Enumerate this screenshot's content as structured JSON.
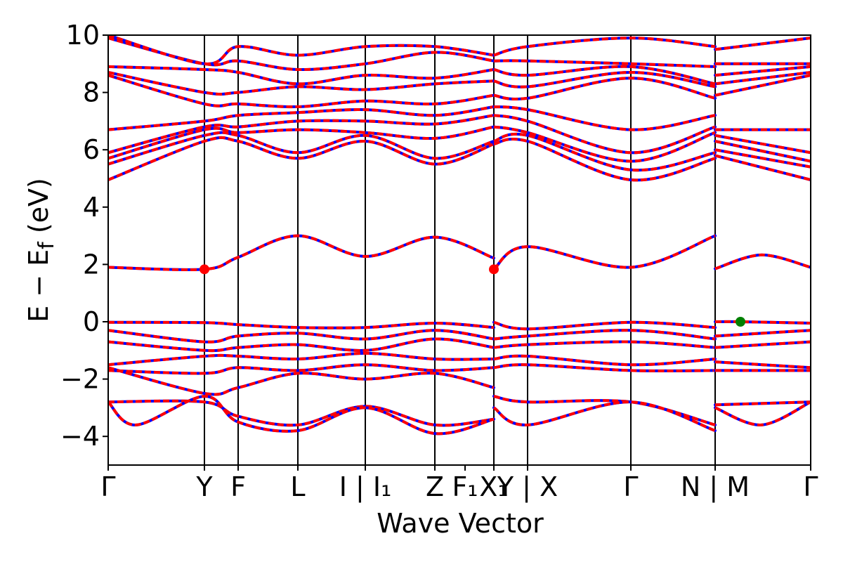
{
  "chart_data": {
    "type": "line",
    "xlabel": "Wave Vector",
    "ylabel": "E − E_f (eV)",
    "ylabel_main": "E − E",
    "ylabel_sub": "f",
    "ylabel_unit": " (eV)",
    "ylim": [
      -5,
      10
    ],
    "yticks": [
      -4,
      -2,
      0,
      2,
      4,
      6,
      8,
      10
    ],
    "ytick_labels": [
      "−4",
      "−2",
      "0",
      "2",
      "4",
      "6",
      "8",
      "10"
    ],
    "xlim": [
      0,
      1
    ],
    "kpoints": [
      {
        "label": "Γ",
        "x": 0.0
      },
      {
        "label": "Y",
        "x": 0.137
      },
      {
        "label": "F",
        "x": 0.185
      },
      {
        "label": "L",
        "x": 0.27
      },
      {
        "label": "I | I₁",
        "x": 0.366
      },
      {
        "label": "Z",
        "x": 0.465
      },
      {
        "label": "F₁",
        "x": 0.508
      },
      {
        "label": "X₁",
        "x": 0.549
      },
      {
        "label": "Y | X",
        "x": 0.597
      },
      {
        "label": "Γ",
        "x": 0.744
      },
      {
        "label": "N | M",
        "x": 0.864
      },
      {
        "label": "Γ",
        "x": 1.0
      }
    ],
    "vlines_x": [
      0.137,
      0.185,
      0.27,
      0.366,
      0.465,
      0.549,
      0.597,
      0.744,
      0.864
    ],
    "series_style": {
      "spin_up_color": "#0000ff",
      "spin_down_color": "#ff0000",
      "dashed": true
    },
    "bands": [
      {
        "x": [
          0.0,
          0.137,
          0.185,
          0.27,
          0.366,
          0.465,
          0.549
        ],
        "y": [
          1.9,
          1.83,
          2.25,
          3.0,
          2.28,
          2.95,
          2.22
        ]
      },
      {
        "x": [
          0.549,
          0.597,
          0.744,
          0.864
        ],
        "y": [
          1.83,
          2.62,
          1.9,
          3.0
        ]
      },
      {
        "x": [
          0.864,
          0.93,
          1.0
        ],
        "y": [
          1.85,
          2.33,
          1.9
        ]
      },
      {
        "x": [
          0.0,
          0.137,
          0.185,
          0.27,
          0.366,
          0.465,
          0.549
        ],
        "y": [
          -0.02,
          -0.03,
          -0.1,
          -0.2,
          -0.2,
          -0.05,
          -0.2
        ]
      },
      {
        "x": [
          0.549,
          0.597,
          0.744,
          0.864
        ],
        "y": [
          -0.02,
          -0.25,
          -0.02,
          -0.2
        ]
      },
      {
        "x": [
          0.864,
          0.9,
          1.0
        ],
        "y": [
          0.0,
          0.0,
          -0.05
        ]
      },
      {
        "x": [
          0.0,
          0.137,
          0.185,
          0.27,
          0.366,
          0.465,
          0.549
        ],
        "y": [
          -0.3,
          -0.7,
          -0.5,
          -0.4,
          -0.6,
          -0.3,
          -0.6
        ]
      },
      {
        "x": [
          0.549,
          0.597,
          0.744,
          0.864
        ],
        "y": [
          -0.6,
          -0.5,
          -0.3,
          -0.6
        ]
      },
      {
        "x": [
          0.864,
          1.0
        ],
        "y": [
          -0.5,
          -0.3
        ]
      },
      {
        "x": [
          0.0,
          0.137,
          0.185,
          0.27,
          0.366,
          0.465,
          0.549
        ],
        "y": [
          -0.7,
          -1.0,
          -0.9,
          -0.8,
          -1.0,
          -0.6,
          -0.9
        ]
      },
      {
        "x": [
          0.549,
          0.597,
          0.744,
          0.864
        ],
        "y": [
          -0.9,
          -0.8,
          -0.7,
          -0.9
        ]
      },
      {
        "x": [
          0.864,
          1.0
        ],
        "y": [
          -0.9,
          -0.7
        ]
      },
      {
        "x": [
          0.0,
          0.137,
          0.185,
          0.27,
          0.366,
          0.465,
          0.549
        ],
        "y": [
          -1.5,
          -1.2,
          -1.2,
          -1.3,
          -1.1,
          -1.3,
          -1.3
        ]
      },
      {
        "x": [
          0.549,
          0.597,
          0.744,
          0.864
        ],
        "y": [
          -1.3,
          -1.2,
          -1.5,
          -1.3
        ]
      },
      {
        "x": [
          0.864,
          1.0
        ],
        "y": [
          -1.4,
          -1.6
        ]
      },
      {
        "x": [
          0.0,
          0.137,
          0.185,
          0.27,
          0.366,
          0.465,
          0.549
        ],
        "y": [
          -1.7,
          -1.8,
          -1.6,
          -1.7,
          -1.5,
          -1.7,
          -1.6
        ]
      },
      {
        "x": [
          0.549,
          0.597,
          0.744,
          0.864
        ],
        "y": [
          -1.6,
          -1.5,
          -1.7,
          -1.7
        ]
      },
      {
        "x": [
          0.864,
          1.0
        ],
        "y": [
          -1.7,
          -1.7
        ]
      },
      {
        "x": [
          0.0,
          0.137,
          0.185,
          0.27,
          0.366,
          0.465,
          0.549
        ],
        "y": [
          -1.6,
          -2.5,
          -2.3,
          -1.8,
          -2.0,
          -1.8,
          -2.3
        ]
      },
      {
        "x": [
          0.0,
          0.137,
          0.185,
          0.27,
          0.366,
          0.465,
          0.549
        ],
        "y": [
          -2.8,
          -2.8,
          -3.3,
          -3.6,
          -2.95,
          -3.6,
          -3.4
        ]
      },
      {
        "x": [
          0.549,
          0.597,
          0.744,
          0.864
        ],
        "y": [
          -2.6,
          -2.8,
          -2.8,
          -3.6
        ]
      },
      {
        "x": [
          0.864,
          1.0
        ],
        "y": [
          -2.9,
          -2.8
        ]
      },
      {
        "x": [
          0.0,
          0.04,
          0.137,
          0.185,
          0.27,
          0.366,
          0.465,
          0.549
        ],
        "y": [
          -2.8,
          -3.6,
          -2.6,
          -3.5,
          -3.8,
          -3.0,
          -3.9,
          -3.4
        ]
      },
      {
        "x": [
          0.549,
          0.597,
          0.744,
          0.864
        ],
        "y": [
          -3.0,
          -3.6,
          -2.8,
          -3.8
        ]
      },
      {
        "x": [
          0.864,
          0.93,
          1.0
        ],
        "y": [
          -3.0,
          -3.6,
          -2.8
        ]
      },
      {
        "x": [
          0.0,
          0.137,
          0.185,
          0.27,
          0.366,
          0.465,
          0.549
        ],
        "y": [
          4.95,
          6.3,
          6.3,
          5.7,
          6.3,
          5.5,
          6.2
        ]
      },
      {
        "x": [
          0.549,
          0.597,
          0.744,
          0.864
        ],
        "y": [
          6.2,
          6.3,
          4.95,
          5.7
        ]
      },
      {
        "x": [
          0.864,
          1.0
        ],
        "y": [
          5.8,
          4.95
        ]
      },
      {
        "x": [
          0.0,
          0.137,
          0.185,
          0.27,
          0.366,
          0.465,
          0.549
        ],
        "y": [
          5.5,
          6.5,
          6.5,
          5.9,
          6.5,
          5.7,
          6.3
        ]
      },
      {
        "x": [
          0.549,
          0.597,
          0.744,
          0.864
        ],
        "y": [
          6.3,
          6.5,
          5.3,
          5.9
        ]
      },
      {
        "x": [
          0.864,
          1.0
        ],
        "y": [
          6.0,
          5.4
        ]
      },
      {
        "x": [
          0.0,
          0.137,
          0.185,
          0.27,
          0.366,
          0.465,
          0.549
        ],
        "y": [
          5.7,
          6.7,
          6.6,
          6.7,
          6.6,
          6.4,
          6.8
        ]
      },
      {
        "x": [
          0.549,
          0.597,
          0.744,
          0.864
        ],
        "y": [
          6.8,
          6.6,
          5.6,
          6.6
        ]
      },
      {
        "x": [
          0.864,
          1.0
        ],
        "y": [
          6.3,
          5.6
        ]
      },
      {
        "x": [
          0.0,
          0.137,
          0.185,
          0.27,
          0.366,
          0.465,
          0.549
        ],
        "y": [
          5.9,
          6.8,
          6.8,
          7.0,
          7.0,
          6.9,
          7.2
        ]
      },
      {
        "x": [
          0.549,
          0.597,
          0.744,
          0.864
        ],
        "y": [
          7.2,
          7.0,
          5.9,
          6.8
        ]
      },
      {
        "x": [
          0.864,
          1.0
        ],
        "y": [
          6.5,
          5.9
        ]
      },
      {
        "x": [
          0.0,
          0.137,
          0.185,
          0.27,
          0.366,
          0.465,
          0.549
        ],
        "y": [
          6.7,
          7.0,
          7.2,
          7.3,
          7.4,
          7.2,
          7.5
        ]
      },
      {
        "x": [
          0.549,
          0.597,
          0.744,
          0.864
        ],
        "y": [
          7.5,
          7.4,
          6.7,
          7.2
        ]
      },
      {
        "x": [
          0.864,
          1.0
        ],
        "y": [
          6.7,
          6.7
        ]
      },
      {
        "x": [
          0.0,
          0.137,
          0.185,
          0.27,
          0.366,
          0.465,
          0.549
        ],
        "y": [
          8.6,
          7.6,
          7.6,
          7.5,
          7.7,
          7.6,
          7.9
        ]
      },
      {
        "x": [
          0.549,
          0.597,
          0.744,
          0.864
        ],
        "y": [
          7.9,
          7.8,
          8.5,
          7.8
        ]
      },
      {
        "x": [
          0.864,
          1.0
        ],
        "y": [
          7.9,
          8.6
        ]
      },
      {
        "x": [
          0.0,
          0.137,
          0.185,
          0.27,
          0.366,
          0.465,
          0.549
        ],
        "y": [
          8.7,
          8.0,
          8.0,
          8.2,
          8.1,
          8.3,
          8.4
        ]
      },
      {
        "x": [
          0.549,
          0.597,
          0.744,
          0.864
        ],
        "y": [
          8.4,
          8.2,
          8.7,
          8.2
        ]
      },
      {
        "x": [
          0.864,
          1.0
        ],
        "y": [
          8.3,
          8.7
        ]
      },
      {
        "x": [
          0.0,
          0.137,
          0.185,
          0.27,
          0.366,
          0.465,
          0.549
        ],
        "y": [
          8.9,
          8.8,
          8.7,
          8.3,
          8.6,
          8.5,
          8.8
        ]
      },
      {
        "x": [
          0.549,
          0.597,
          0.744,
          0.864
        ],
        "y": [
          8.8,
          8.6,
          8.9,
          8.3
        ]
      },
      {
        "x": [
          0.864,
          1.0
        ],
        "y": [
          8.6,
          8.9
        ]
      },
      {
        "x": [
          0.0,
          0.137,
          0.185,
          0.27,
          0.366,
          0.465,
          0.549
        ],
        "y": [
          9.9,
          9.0,
          9.1,
          8.8,
          9.0,
          9.4,
          9.1
        ]
      },
      {
        "x": [
          0.549,
          0.597,
          0.744,
          0.864
        ],
        "y": [
          9.1,
          9.1,
          9.0,
          8.9
        ]
      },
      {
        "x": [
          0.864,
          1.0
        ],
        "y": [
          9.0,
          9.0
        ]
      },
      {
        "x": [
          0.0,
          0.137,
          0.185,
          0.27,
          0.366,
          0.465,
          0.549
        ],
        "y": [
          10.0,
          9.0,
          9.6,
          9.3,
          9.6,
          9.6,
          9.3
        ]
      },
      {
        "x": [
          0.549,
          0.597,
          0.744,
          0.864
        ],
        "y": [
          9.3,
          9.6,
          9.9,
          9.6
        ]
      },
      {
        "x": [
          0.864,
          1.0
        ],
        "y": [
          9.5,
          9.9
        ]
      }
    ],
    "markers": [
      {
        "x": 0.137,
        "y": 1.83,
        "color": "#ff0000"
      },
      {
        "x": 0.549,
        "y": 1.83,
        "color": "#ff0000"
      },
      {
        "x": 0.9,
        "y": 0.0,
        "color": "#008000"
      }
    ]
  }
}
